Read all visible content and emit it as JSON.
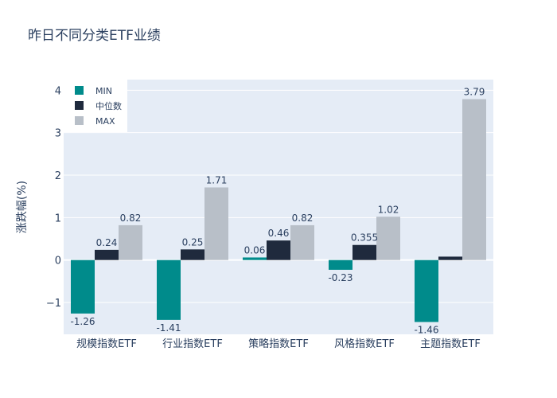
{
  "chart_data": {
    "type": "bar",
    "title": "昨日不同分类ETF业绩",
    "xlabel": "",
    "ylabel": "涨跌幅(%)",
    "ylim": [
      -1.75,
      4.25
    ],
    "yticks": [
      -1,
      0,
      1,
      2,
      3,
      4
    ],
    "ytick_labels": [
      "−1",
      "0",
      "1",
      "2",
      "3",
      "4"
    ],
    "grid": true,
    "legend_position": "top-left",
    "categories": [
      "规模指数ETF",
      "行业指数ETF",
      "策略指数ETF",
      "风格指数ETF",
      "主题指数ETF"
    ],
    "series": [
      {
        "name": "MIN",
        "color": "#008b8b",
        "values": [
          -1.26,
          -1.41,
          0.06,
          -0.23,
          -1.46
        ],
        "labels": [
          "-1.26",
          "-1.41",
          "0.06",
          "-0.23",
          "-1.46"
        ]
      },
      {
        "name": "中位数",
        "color": "#1f2a3d",
        "values": [
          0.24,
          0.25,
          0.46,
          0.355,
          0.08
        ],
        "labels": [
          "0.24",
          "0.25",
          "0.46",
          "0.355",
          ""
        ]
      },
      {
        "name": "MAX",
        "color": "#b8bfc8",
        "values": [
          0.82,
          1.71,
          0.82,
          1.02,
          3.79
        ],
        "labels": [
          "0.82",
          "1.71",
          "0.82",
          "1.02",
          "3.79"
        ]
      }
    ]
  }
}
